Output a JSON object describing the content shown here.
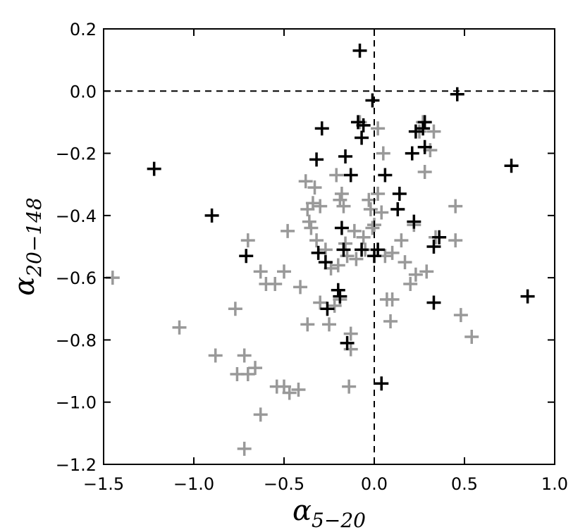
{
  "chart_data": {
    "type": "scatter",
    "title": "",
    "xlabel": "α5−20",
    "ylabel": "α20−148",
    "xlabel_parts": {
      "base": "α",
      "sub": "5−20"
    },
    "ylabel_parts": {
      "base": "α",
      "sub": "20−148"
    },
    "xlim": [
      -1.5,
      1.0
    ],
    "ylim": [
      -1.2,
      0.2
    ],
    "xticks": [
      -1.5,
      -1.0,
      -0.5,
      0.0,
      0.5,
      1.0
    ],
    "yticks": [
      -1.2,
      -1.0,
      -0.8,
      -0.6,
      -0.4,
      -0.2,
      0.0,
      0.2
    ],
    "xtick_labels": [
      "−1.5",
      "−1.0",
      "−0.5",
      "0.0",
      "0.5",
      "1.0"
    ],
    "ytick_labels": [
      "−1.2",
      "−1.0",
      "−0.8",
      "−0.6",
      "−0.4",
      "−0.2",
      "0.0",
      "0.2"
    ],
    "grid": false,
    "reference_lines": {
      "x": 0.0,
      "y": 0.0,
      "style": "dashed"
    },
    "marker": "plus",
    "series": [
      {
        "color": "#999999",
        "points": [
          [
            -1.45,
            -0.6
          ],
          [
            -1.08,
            -0.76
          ],
          [
            -0.88,
            -0.85
          ],
          [
            -0.77,
            -0.7
          ],
          [
            -0.76,
            -0.91
          ],
          [
            -0.72,
            -0.85
          ],
          [
            -0.72,
            -1.15
          ],
          [
            -0.7,
            -0.91
          ],
          [
            -0.7,
            -0.48
          ],
          [
            -0.66,
            -0.89
          ],
          [
            -0.63,
            -0.58
          ],
          [
            -0.63,
            -1.04
          ],
          [
            -0.6,
            -0.62
          ],
          [
            -0.55,
            -0.62
          ],
          [
            -0.54,
            -0.95
          ],
          [
            -0.5,
            -0.58
          ],
          [
            -0.5,
            -0.95
          ],
          [
            -0.48,
            -0.45
          ],
          [
            -0.47,
            -0.97
          ],
          [
            -0.42,
            -0.96
          ],
          [
            -0.41,
            -0.63
          ],
          [
            -0.38,
            -0.29
          ],
          [
            -0.37,
            -0.38
          ],
          [
            -0.37,
            -0.75
          ],
          [
            -0.36,
            -0.42
          ],
          [
            -0.35,
            -0.44
          ],
          [
            -0.34,
            -0.36
          ],
          [
            -0.33,
            -0.31
          ],
          [
            -0.32,
            -0.48
          ],
          [
            -0.3,
            -0.37
          ],
          [
            -0.3,
            -0.68
          ],
          [
            -0.27,
            -0.51
          ],
          [
            -0.25,
            -0.75
          ],
          [
            -0.24,
            -0.57
          ],
          [
            -0.22,
            -0.69
          ],
          [
            -0.21,
            -0.27
          ],
          [
            -0.2,
            -0.56
          ],
          [
            -0.19,
            -0.35
          ],
          [
            -0.19,
            -0.67
          ],
          [
            -0.18,
            -0.33
          ],
          [
            -0.17,
            -0.37
          ],
          [
            -0.16,
            -0.49
          ],
          [
            -0.15,
            -0.53
          ],
          [
            -0.14,
            -0.95
          ],
          [
            -0.13,
            -0.83
          ],
          [
            -0.13,
            -0.78
          ],
          [
            -0.11,
            -0.45
          ],
          [
            -0.1,
            -0.54
          ],
          [
            -0.08,
            -0.1
          ],
          [
            -0.06,
            -0.47
          ],
          [
            -0.05,
            -0.51
          ],
          [
            -0.03,
            -0.35
          ],
          [
            -0.02,
            -0.38
          ],
          [
            -0.01,
            -0.44
          ],
          [
            0.0,
            -0.43
          ],
          [
            0.02,
            -0.33
          ],
          [
            0.02,
            -0.12
          ],
          [
            0.04,
            -0.39
          ],
          [
            0.05,
            -0.2
          ],
          [
            0.06,
            -0.53
          ],
          [
            0.07,
            -0.67
          ],
          [
            0.09,
            -0.74
          ],
          [
            0.1,
            -0.67
          ],
          [
            0.1,
            -0.52
          ],
          [
            0.13,
            -0.38
          ],
          [
            0.15,
            -0.48
          ],
          [
            0.17,
            -0.55
          ],
          [
            0.2,
            -0.62
          ],
          [
            0.22,
            -0.43
          ],
          [
            0.23,
            -0.59
          ],
          [
            0.25,
            -0.13
          ],
          [
            0.27,
            -0.1
          ],
          [
            0.28,
            -0.26
          ],
          [
            0.29,
            -0.58
          ],
          [
            0.31,
            -0.19
          ],
          [
            0.33,
            -0.13
          ],
          [
            0.34,
            -0.47
          ],
          [
            0.45,
            -0.37
          ],
          [
            0.45,
            -0.48
          ],
          [
            0.48,
            -0.72
          ],
          [
            0.54,
            -0.79
          ]
        ]
      },
      {
        "color": "#000000",
        "points": [
          [
            -1.22,
            -0.25
          ],
          [
            -0.9,
            -0.4
          ],
          [
            -0.71,
            -0.53
          ],
          [
            -0.32,
            -0.22
          ],
          [
            -0.31,
            -0.52
          ],
          [
            -0.29,
            -0.12
          ],
          [
            -0.27,
            -0.55
          ],
          [
            -0.26,
            -0.7
          ],
          [
            -0.2,
            -0.64
          ],
          [
            -0.19,
            -0.66
          ],
          [
            -0.18,
            -0.44
          ],
          [
            -0.17,
            -0.51
          ],
          [
            -0.16,
            -0.21
          ],
          [
            -0.15,
            -0.81
          ],
          [
            -0.13,
            -0.27
          ],
          [
            -0.09,
            -0.1
          ],
          [
            -0.08,
            0.13
          ],
          [
            -0.07,
            -0.51
          ],
          [
            -0.07,
            -0.15
          ],
          [
            -0.06,
            -0.11
          ],
          [
            -0.01,
            -0.03
          ],
          [
            0.0,
            -0.53
          ],
          [
            0.02,
            -0.51
          ],
          [
            0.04,
            -0.94
          ],
          [
            0.06,
            -0.27
          ],
          [
            0.13,
            -0.38
          ],
          [
            0.14,
            -0.33
          ],
          [
            0.21,
            -0.2
          ],
          [
            0.22,
            -0.42
          ],
          [
            0.23,
            -0.13
          ],
          [
            0.27,
            -0.12
          ],
          [
            0.28,
            -0.1
          ],
          [
            0.28,
            -0.18
          ],
          [
            0.33,
            -0.5
          ],
          [
            0.33,
            -0.68
          ],
          [
            0.36,
            -0.47
          ],
          [
            0.46,
            -0.01
          ],
          [
            0.76,
            -0.24
          ],
          [
            0.85,
            -0.66
          ]
        ]
      }
    ]
  }
}
